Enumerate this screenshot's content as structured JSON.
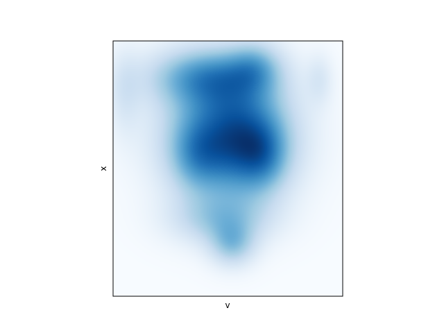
{
  "chart_data": {
    "type": "heatmap",
    "title": "",
    "xlabel": "v",
    "ylabel": "x",
    "colormap": "Blues",
    "ticks_visible": false,
    "density_blobs": [
      {
        "cx": 0.5,
        "cy": 0.63,
        "sx": 0.19,
        "sy": 0.17,
        "w": 0.85
      },
      {
        "cx": 0.58,
        "cy": 0.59,
        "sx": 0.12,
        "sy": 0.14,
        "w": 0.38
      },
      {
        "cx": 0.41,
        "cy": 0.86,
        "sx": 0.18,
        "sy": 0.08,
        "w": 0.62
      },
      {
        "cx": 0.62,
        "cy": 0.9,
        "sx": 0.08,
        "sy": 0.07,
        "w": 0.35
      },
      {
        "cx": 0.36,
        "cy": 0.55,
        "sx": 0.08,
        "sy": 0.1,
        "w": 0.32
      },
      {
        "cx": 0.66,
        "cy": 0.55,
        "sx": 0.07,
        "sy": 0.09,
        "w": 0.28
      },
      {
        "cx": 0.47,
        "cy": 0.3,
        "sx": 0.15,
        "sy": 0.07,
        "w": 0.38
      },
      {
        "cx": 0.52,
        "cy": 0.2,
        "sx": 0.07,
        "sy": 0.06,
        "w": 0.42
      },
      {
        "cx": 0.05,
        "cy": 0.8,
        "sx": 0.05,
        "sy": 0.12,
        "w": 0.18
      },
      {
        "cx": 0.9,
        "cy": 0.85,
        "sx": 0.04,
        "sy": 0.07,
        "w": 0.16
      }
    ]
  }
}
